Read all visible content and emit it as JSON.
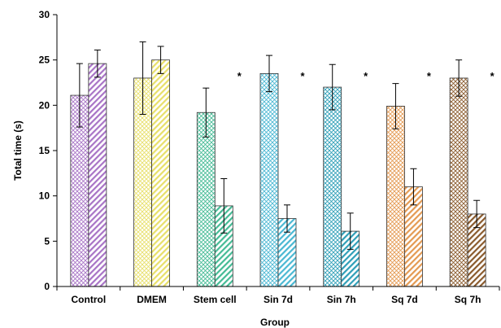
{
  "chart_data": {
    "type": "bar",
    "categories": [
      "Control",
      "DMEM",
      "Stem cell",
      "Sin 7d",
      "Sin 7h",
      "Sq 7d",
      "Sq 7h"
    ],
    "series": [
      {
        "pattern": "crosshatch",
        "values": [
          21.1,
          23.0,
          19.2,
          23.5,
          22.0,
          19.9,
          23.0
        ],
        "errors": [
          3.5,
          4.0,
          2.7,
          2.0,
          2.5,
          2.5,
          2.0
        ]
      },
      {
        "pattern": "diagonal",
        "values": [
          24.6,
          25.0,
          8.9,
          7.5,
          6.1,
          11.0,
          8.0
        ],
        "errors": [
          1.5,
          1.5,
          3.0,
          1.5,
          2.0,
          2.0,
          1.5
        ]
      }
    ],
    "colors": [
      "#a874c6",
      "#e8e06a",
      "#44bb95",
      "#4ab8d3",
      "#2f9fb8",
      "#e49a52",
      "#8a5a2c"
    ],
    "significance_marker": "*",
    "significant": [
      false,
      false,
      true,
      true,
      true,
      true,
      true
    ],
    "xlabel": "Group",
    "ylabel": "Total time (s)",
    "ylim": [
      0,
      30
    ],
    "yticks": [
      0,
      5,
      10,
      15,
      20,
      25,
      30
    ],
    "grid": false,
    "legend": "none"
  }
}
